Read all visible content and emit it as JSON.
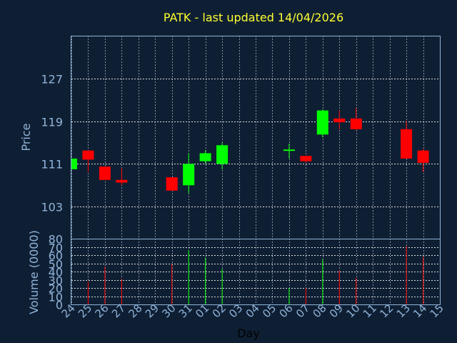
{
  "chart_data": {
    "type": "candlestick",
    "title": "PATK - last updated 14/04/2026",
    "price_panel": {
      "ylabel": "Price",
      "ylim": [
        97,
        135
      ],
      "yticks": [
        103,
        111,
        119,
        127
      ],
      "grid": true
    },
    "volume_panel": {
      "ylabel": "Volume (0000)",
      "ylim": [
        0,
        80
      ],
      "yticks": [
        0,
        10,
        20,
        30,
        40,
        50,
        60,
        70,
        80
      ],
      "grid": true
    },
    "xlabel": "Day",
    "x_ticks": [
      "24",
      "25",
      "26",
      "27",
      "28",
      "29",
      "30",
      "31",
      "01",
      "02",
      "03",
      "04",
      "05",
      "06",
      "07",
      "08",
      "09",
      "10",
      "11",
      "12",
      "13",
      "14",
      "15"
    ],
    "colors": {
      "up": "#00ff00",
      "down": "#ff0000",
      "background": "#0f1f33",
      "frame": "#8fb3d9",
      "title": "#ffff33"
    },
    "candles": [
      {
        "day": "24",
        "open": 110.0,
        "close": 112.0,
        "high": 112.0,
        "low": 110.0,
        "volume": 0
      },
      {
        "day": "25",
        "open": 113.5,
        "close": 111.8,
        "high": 113.5,
        "low": 109.5,
        "volume": 28
      },
      {
        "day": "26",
        "open": 110.5,
        "close": 108.0,
        "high": 110.5,
        "low": 108.0,
        "volume": 46
      },
      {
        "day": "27",
        "open": 108.0,
        "close": 107.5,
        "high": 110.2,
        "low": 107.0,
        "volume": 31
      },
      {
        "day": "30",
        "open": 108.5,
        "close": 106.0,
        "high": 108.5,
        "low": 106.0,
        "volume": 49
      },
      {
        "day": "31",
        "open": 107.0,
        "close": 111.0,
        "high": 113.0,
        "low": 105.5,
        "volume": 66
      },
      {
        "day": "01",
        "open": 111.5,
        "close": 113.0,
        "high": 113.5,
        "low": 111.0,
        "volume": 57
      },
      {
        "day": "02",
        "open": 111.0,
        "close": 114.5,
        "high": 115.0,
        "low": 110.0,
        "volume": 43
      },
      {
        "day": "06",
        "open": 113.5,
        "close": 113.7,
        "high": 114.8,
        "low": 112.0,
        "volume": 20
      },
      {
        "day": "07",
        "open": 112.5,
        "close": 111.5,
        "high": 112.5,
        "low": 111.2,
        "volume": 20
      },
      {
        "day": "08",
        "open": 116.5,
        "close": 121.0,
        "high": 121.2,
        "low": 116.0,
        "volume": 55
      },
      {
        "day": "09",
        "open": 119.5,
        "close": 118.8,
        "high": 121.0,
        "low": 117.5,
        "volume": 41
      },
      {
        "day": "10",
        "open": 119.5,
        "close": 117.5,
        "high": 121.5,
        "low": 117.3,
        "volume": 32
      },
      {
        "day": "13",
        "open": 117.5,
        "close": 112.0,
        "high": 119.0,
        "low": 112.0,
        "volume": 71
      },
      {
        "day": "14",
        "open": 113.5,
        "close": 111.2,
        "high": 113.8,
        "low": 109.5,
        "volume": 58
      }
    ]
  }
}
